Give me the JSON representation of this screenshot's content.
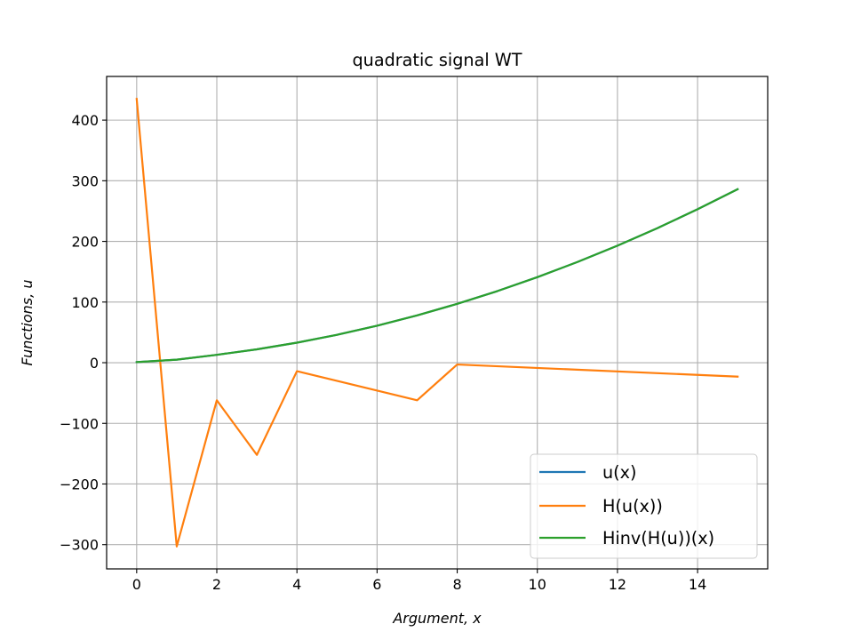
{
  "chart_data": {
    "type": "line",
    "title": "quadratic signal WT",
    "xlabel": "Argument, x",
    "ylabel": "Functions, u",
    "xlim": [
      -0.75,
      15.75
    ],
    "ylim": [
      -340,
      472
    ],
    "xticks": [
      0,
      2,
      4,
      6,
      8,
      10,
      12,
      14
    ],
    "yticks": [
      -300,
      -200,
      -100,
      0,
      100,
      200,
      300,
      400
    ],
    "xtick_labels": [
      "0",
      "2",
      "4",
      "6",
      "8",
      "10",
      "12",
      "14"
    ],
    "ytick_labels": [
      "−300",
      "−200",
      "−100",
      "0",
      "100",
      "200",
      "300",
      "400"
    ],
    "grid": true,
    "legend_position": "lower-right",
    "x": [
      0,
      1,
      2,
      3,
      4,
      5,
      6,
      7,
      8,
      9,
      10,
      11,
      12,
      13,
      14,
      15
    ],
    "series": [
      {
        "name": "u(x)",
        "color": "#1f77b4",
        "x": [
          0,
          1,
          2,
          3,
          4,
          5,
          6,
          7,
          8,
          9,
          10,
          11,
          12,
          13,
          14,
          15
        ],
        "values": [
          1,
          5,
          13,
          22,
          33,
          46,
          61,
          78,
          97,
          118,
          141,
          166,
          193,
          222,
          253,
          286
        ]
      },
      {
        "name": "H(u(x))",
        "color": "#ff7f0e",
        "x": [
          0,
          1,
          2,
          3,
          4,
          7,
          8,
          15
        ],
        "values": [
          435,
          -303,
          -62,
          -152,
          -14,
          -62,
          -3,
          -23
        ]
      },
      {
        "name": "Hinv(H(u))(x)",
        "color": "#2ca02c",
        "x": [
          0,
          1,
          2,
          3,
          4,
          5,
          6,
          7,
          8,
          9,
          10,
          11,
          12,
          13,
          14,
          15
        ],
        "values": [
          1,
          5,
          13,
          22,
          33,
          46,
          61,
          78,
          97,
          118,
          141,
          166,
          193,
          222,
          253,
          286
        ]
      }
    ]
  }
}
